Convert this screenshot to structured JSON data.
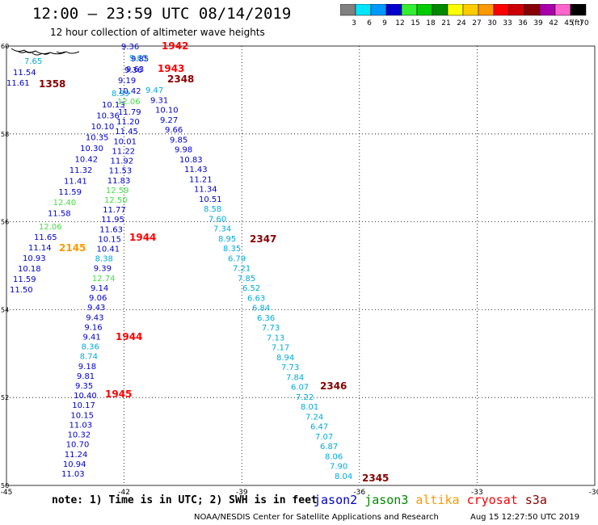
{
  "header": {
    "title": "12:00 – 23:59 UTC 08/14/2019",
    "subtitle": "12 hour collection of altimeter wave heights"
  },
  "legend": {
    "unit": "(ft)",
    "bins": [
      {
        "label": "3",
        "color": "#808080"
      },
      {
        "label": "6",
        "color": "#00e5ff"
      },
      {
        "label": "9",
        "color": "#0099ff"
      },
      {
        "label": "12",
        "color": "#0000cc"
      },
      {
        "label": "15",
        "color": "#33ee33"
      },
      {
        "label": "18",
        "color": "#00cc00"
      },
      {
        "label": "21",
        "color": "#008800"
      },
      {
        "label": "24",
        "color": "#ffff00"
      },
      {
        "label": "27",
        "color": "#ffcc00"
      },
      {
        "label": "30",
        "color": "#ff9900"
      },
      {
        "label": "33",
        "color": "#ff0000"
      },
      {
        "label": "36",
        "color": "#cc0000"
      },
      {
        "label": "39",
        "color": "#880000"
      },
      {
        "label": "42",
        "color": "#aa00aa"
      },
      {
        "label": "45",
        "color": "#ff66cc"
      },
      {
        "label": "70",
        "color": "#000000"
      }
    ]
  },
  "axes": {
    "lon_ticks": [
      "-45",
      "-42",
      "-39",
      "-36",
      "-33",
      "-30"
    ],
    "lat_ticks": [
      "60",
      "58",
      "56",
      "54",
      "52",
      "50"
    ]
  },
  "colors": {
    "jason2": "#0000cc",
    "jason3": "#008800",
    "altika": "#ff9900",
    "cryosat": "#ff0000",
    "s3a": "#880000",
    "cyan": "#00aadd",
    "lightgreen": "#44dd44"
  },
  "track_a": [
    {
      "v": "7.65",
      "c": "cyan"
    },
    {
      "v": "11.54",
      "c": "jason2"
    },
    {
      "v": "11.61",
      "c": "jason2"
    }
  ],
  "track_b": [
    {
      "v": "10.13",
      "c": "jason2"
    },
    {
      "v": "10.36",
      "c": "jason2"
    },
    {
      "v": "10.10",
      "c": "jason2"
    },
    {
      "v": "10.35",
      "c": "jason2"
    },
    {
      "v": "10.30",
      "c": "jason2"
    },
    {
      "v": "10.42",
      "c": "jason2"
    },
    {
      "v": "11.32",
      "c": "jason2"
    },
    {
      "v": "11.41",
      "c": "jason2"
    },
    {
      "v": "11.59",
      "c": "jason2"
    },
    {
      "v": "12.40",
      "c": "lightgreen"
    },
    {
      "v": "11.58",
      "c": "jason2"
    },
    {
      "v": "12.06",
      "c": "lightgreen"
    },
    {
      "v": "11.65",
      "c": "jason2"
    },
    {
      "v": "11.14",
      "c": "jason2"
    },
    {
      "v": "10.93",
      "c": "jason2"
    },
    {
      "v": "10.18",
      "c": "jason2"
    },
    {
      "v": "11.59",
      "c": "jason2"
    },
    {
      "v": "11.50",
      "c": "jason2"
    }
  ],
  "track_c": [
    {
      "v": "9.36",
      "c": "jason2"
    },
    {
      "v": "9.65",
      "c": "cyan"
    },
    {
      "v": "9.85",
      "c": "jason2"
    },
    {
      "v": "9.63",
      "c": "jason2"
    },
    {
      "v": "9.36",
      "c": "jason2"
    },
    {
      "v": "9.19",
      "c": "jason2"
    },
    {
      "v": "10.42",
      "c": "jason2"
    },
    {
      "v": "8.99",
      "c": "cyan"
    },
    {
      "v": "12.06",
      "c": "lightgreen"
    },
    {
      "v": "11.79",
      "c": "jason2"
    },
    {
      "v": "11.20",
      "c": "jason2"
    },
    {
      "v": "11.45",
      "c": "jason2"
    },
    {
      "v": "10.01",
      "c": "jason2"
    },
    {
      "v": "11.22",
      "c": "jason2"
    },
    {
      "v": "11.92",
      "c": "jason2"
    },
    {
      "v": "11.53",
      "c": "jason2"
    },
    {
      "v": "11.83",
      "c": "jason2"
    },
    {
      "v": "12.59",
      "c": "lightgreen"
    },
    {
      "v": "12.50",
      "c": "lightgreen"
    },
    {
      "v": "11.77",
      "c": "jason2"
    },
    {
      "v": "11.95",
      "c": "jason2"
    },
    {
      "v": "11.63",
      "c": "jason2"
    },
    {
      "v": "10.15",
      "c": "jason2"
    },
    {
      "v": "10.41",
      "c": "jason2"
    },
    {
      "v": "8.38",
      "c": "cyan"
    },
    {
      "v": "9.39",
      "c": "jason2"
    },
    {
      "v": "12.74",
      "c": "lightgreen"
    },
    {
      "v": "9.14",
      "c": "jason2"
    },
    {
      "v": "9.06",
      "c": "jason2"
    },
    {
      "v": "9.43",
      "c": "jason2"
    },
    {
      "v": "9.43",
      "c": "jason2"
    },
    {
      "v": "9.16",
      "c": "jason2"
    },
    {
      "v": "9.41",
      "c": "jason2"
    },
    {
      "v": "8.36",
      "c": "cyan"
    },
    {
      "v": "8.74",
      "c": "cyan"
    },
    {
      "v": "9.18",
      "c": "jason2"
    },
    {
      "v": "9.81",
      "c": "jason2"
    },
    {
      "v": "9.35",
      "c": "jason2"
    },
    {
      "v": "10.40",
      "c": "jason2"
    },
    {
      "v": "10.17",
      "c": "jason2"
    },
    {
      "v": "10.15",
      "c": "jason2"
    },
    {
      "v": "11.03",
      "c": "jason2"
    },
    {
      "v": "10.32",
      "c": "jason2"
    },
    {
      "v": "10.70",
      "c": "jason2"
    },
    {
      "v": "11.24",
      "c": "jason2"
    },
    {
      "v": "10.94",
      "c": "jason2"
    },
    {
      "v": "11.03",
      "c": "jason2"
    }
  ],
  "track_d": [
    {
      "v": "9.47",
      "c": "cyan"
    },
    {
      "v": "9.31",
      "c": "jason2"
    },
    {
      "v": "10.10",
      "c": "jason2"
    },
    {
      "v": "9.27",
      "c": "jason2"
    },
    {
      "v": "9.66",
      "c": "jason2"
    },
    {
      "v": "9.85",
      "c": "jason2"
    },
    {
      "v": "9.98",
      "c": "jason2"
    },
    {
      "v": "10.83",
      "c": "jason2"
    },
    {
      "v": "11.43",
      "c": "jason2"
    },
    {
      "v": "11.21",
      "c": "jason2"
    },
    {
      "v": "11.34",
      "c": "jason2"
    },
    {
      "v": "10.51",
      "c": "jason2"
    },
    {
      "v": "8.58",
      "c": "cyan"
    },
    {
      "v": "7.60",
      "c": "cyan"
    },
    {
      "v": "7.34",
      "c": "cyan"
    },
    {
      "v": "8.95",
      "c": "cyan"
    },
    {
      "v": "8.35",
      "c": "cyan"
    },
    {
      "v": "6.79",
      "c": "cyan"
    },
    {
      "v": "7.21",
      "c": "cyan"
    },
    {
      "v": "7.85",
      "c": "cyan"
    },
    {
      "v": "6.52",
      "c": "cyan"
    },
    {
      "v": "6.63",
      "c": "cyan"
    },
    {
      "v": "6.84",
      "c": "cyan"
    },
    {
      "v": "6.36",
      "c": "cyan"
    },
    {
      "v": "7.73",
      "c": "cyan"
    },
    {
      "v": "7.13",
      "c": "cyan"
    },
    {
      "v": "7.17",
      "c": "cyan"
    },
    {
      "v": "8.94",
      "c": "cyan"
    },
    {
      "v": "7.73",
      "c": "cyan"
    },
    {
      "v": "7.84",
      "c": "cyan"
    },
    {
      "v": "6.07",
      "c": "cyan"
    },
    {
      "v": "7.22",
      "c": "cyan"
    },
    {
      "v": "8.01",
      "c": "cyan"
    },
    {
      "v": "7.24",
      "c": "cyan"
    },
    {
      "v": "6.47",
      "c": "cyan"
    },
    {
      "v": "7.07",
      "c": "cyan"
    },
    {
      "v": "6.87",
      "c": "cyan"
    },
    {
      "v": "8.06",
      "c": "cyan"
    },
    {
      "v": "7.90",
      "c": "cyan"
    },
    {
      "v": "8.04",
      "c": "cyan"
    }
  ],
  "pass_times": [
    {
      "t": "1942",
      "c": "cryosat"
    },
    {
      "t": "1943",
      "c": "cryosat"
    },
    {
      "t": "2348",
      "c": "s3a"
    },
    {
      "t": "1358",
      "c": "s3a"
    },
    {
      "t": "1944",
      "c": "cryosat"
    },
    {
      "t": "2347",
      "c": "s3a"
    },
    {
      "t": "2145",
      "c": "altika"
    },
    {
      "t": "1944",
      "c": "cryosat"
    },
    {
      "t": "2346",
      "c": "s3a"
    },
    {
      "t": "1945",
      "c": "cryosat"
    },
    {
      "t": "2345",
      "c": "s3a"
    }
  ],
  "footer": {
    "note": "note: 1) Time is in UTC; 2) SWH is in feet",
    "missions": [
      {
        "label": "jason2",
        "c": "jason2"
      },
      {
        "label": "jason3",
        "c": "jason3"
      },
      {
        "label": "altika",
        "c": "altika"
      },
      {
        "label": "cryosat",
        "c": "cryosat"
      },
      {
        "label": "s3a",
        "c": "s3a"
      }
    ],
    "credit": "NOAA/NESDIS Center for Satellite Applications and Research",
    "timestamp": "Aug 15 12:27:50 UTC 2019"
  }
}
